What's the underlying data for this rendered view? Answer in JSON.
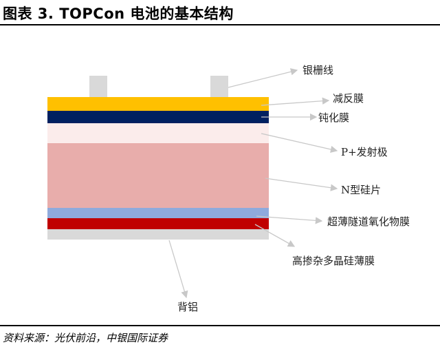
{
  "title": "图表 3. TOPCon 电池的基本结构",
  "layers": [
    {
      "name": "减反膜",
      "color": "#ffc000"
    },
    {
      "name": "钝化膜",
      "color": "#002060"
    },
    {
      "name": "P+发射极",
      "color": "#fbeceb"
    },
    {
      "name": "N型硅片",
      "color": "#e8adab"
    },
    {
      "name": "超薄隧道氧化物膜",
      "color": "#8faadc"
    },
    {
      "name": "高掺杂多晶硅薄膜",
      "color": "#c00000"
    },
    {
      "name": "背铝",
      "color": "#d9d9d9"
    }
  ],
  "labels": {
    "grid": "银栅线",
    "arc": "减反膜",
    "passivation": "钝化膜",
    "emitter": "P+发射极",
    "wafer": "N型硅片",
    "oxide": "超薄隧道氧化物膜",
    "poly": "高掺杂多晶硅薄膜",
    "back": "背铝"
  },
  "source": "资料来源：光伏前沿，中银国际证券"
}
